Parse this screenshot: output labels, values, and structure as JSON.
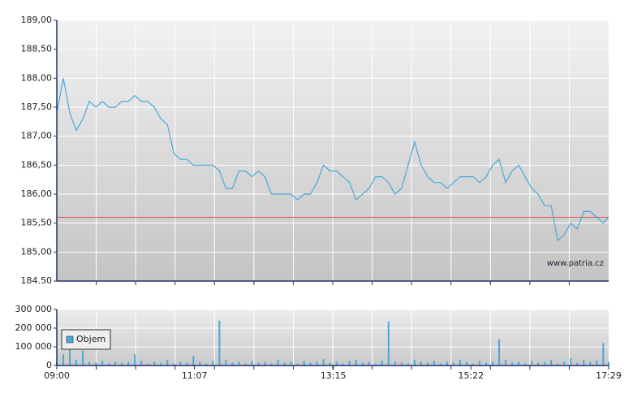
{
  "chart_data": [
    {
      "type": "line",
      "color": "#4aa8d8",
      "x": [
        "09:00",
        "09:06",
        "09:12",
        "09:18",
        "09:24",
        "09:30",
        "09:36",
        "09:42",
        "09:48",
        "09:54",
        "10:00",
        "10:06",
        "10:12",
        "10:18",
        "10:24",
        "10:30",
        "10:36",
        "10:42",
        "10:48",
        "10:54",
        "11:00",
        "11:06",
        "11:12",
        "11:18",
        "11:24",
        "11:30",
        "11:36",
        "11:42",
        "11:48",
        "11:54",
        "12:00",
        "12:06",
        "12:12",
        "12:18",
        "12:24",
        "12:30",
        "12:36",
        "12:42",
        "12:48",
        "12:54",
        "13:00",
        "13:06",
        "13:12",
        "13:18",
        "13:24",
        "13:30",
        "13:36",
        "13:42",
        "13:48",
        "13:54",
        "14:00",
        "14:06",
        "14:12",
        "14:18",
        "14:24",
        "14:30",
        "14:36",
        "14:42",
        "14:48",
        "14:54",
        "15:00",
        "15:06",
        "15:12",
        "15:18",
        "15:24",
        "15:30",
        "15:36",
        "15:42",
        "15:48",
        "15:54",
        "16:00",
        "16:06",
        "16:12",
        "16:18",
        "16:24",
        "16:30",
        "16:36",
        "16:42",
        "16:48",
        "16:54",
        "17:00",
        "17:06",
        "17:12",
        "17:18",
        "17:24",
        "17:29"
      ],
      "values": [
        187.4,
        188.0,
        187.4,
        187.1,
        187.3,
        187.6,
        187.5,
        187.6,
        187.5,
        187.5,
        187.6,
        187.6,
        187.7,
        187.6,
        187.6,
        187.5,
        187.3,
        187.2,
        186.7,
        186.6,
        186.6,
        186.5,
        186.5,
        186.5,
        186.5,
        186.4,
        186.1,
        186.1,
        186.4,
        186.4,
        186.3,
        186.4,
        186.3,
        186.0,
        186.0,
        186.0,
        186.0,
        185.9,
        186.0,
        186.0,
        186.2,
        186.5,
        186.4,
        186.4,
        186.3,
        186.2,
        185.9,
        186.0,
        186.1,
        186.3,
        186.3,
        186.2,
        186.0,
        186.1,
        186.5,
        186.9,
        186.5,
        186.3,
        186.2,
        186.2,
        186.1,
        186.2,
        186.3,
        186.3,
        186.3,
        186.2,
        186.3,
        186.5,
        186.6,
        186.2,
        186.4,
        186.5,
        186.3,
        186.1,
        186.0,
        185.8,
        185.8,
        185.2,
        185.3,
        185.5,
        185.4,
        185.7,
        185.7,
        185.6,
        185.5,
        185.6
      ],
      "xlim": [
        "09:00",
        "17:29"
      ],
      "ylim": [
        184.5,
        189
      ],
      "yticks": [
        {
          "value": 184.5,
          "label": "184.50"
        },
        {
          "value": 185,
          "label": "185,00"
        },
        {
          "value": 185.5,
          "label": "185,50"
        },
        {
          "value": 186,
          "label": "186,00"
        },
        {
          "value": 186.5,
          "label": "186,50"
        },
        {
          "value": 187,
          "label": "187,00"
        },
        {
          "value": 187.5,
          "label": "187,50"
        },
        {
          "value": 188,
          "label": "188,00"
        },
        {
          "value": 188.5,
          "label": "188,50"
        },
        {
          "value": 189,
          "label": "189,00"
        }
      ],
      "grid": true,
      "reference_line": 185.6,
      "reference_color": "#e05050",
      "annotation": "www.patria.cz"
    },
    {
      "type": "bar",
      "x": [
        "09:00",
        "09:06",
        "09:12",
        "09:18",
        "09:24",
        "09:30",
        "09:36",
        "09:42",
        "09:48",
        "09:54",
        "10:00",
        "10:06",
        "10:12",
        "10:18",
        "10:24",
        "10:30",
        "10:36",
        "10:42",
        "10:48",
        "10:54",
        "11:00",
        "11:06",
        "11:12",
        "11:18",
        "11:24",
        "11:30",
        "11:36",
        "11:42",
        "11:48",
        "11:54",
        "12:00",
        "12:06",
        "12:12",
        "12:18",
        "12:24",
        "12:30",
        "12:36",
        "12:42",
        "12:48",
        "12:54",
        "13:00",
        "13:06",
        "13:12",
        "13:18",
        "13:24",
        "13:30",
        "13:36",
        "13:42",
        "13:48",
        "13:54",
        "14:00",
        "14:06",
        "14:12",
        "14:18",
        "14:24",
        "14:30",
        "14:36",
        "14:42",
        "14:48",
        "14:54",
        "15:00",
        "15:06",
        "15:12",
        "15:18",
        "15:24",
        "15:30",
        "15:36",
        "15:42",
        "15:48",
        "15:54",
        "16:00",
        "16:06",
        "16:12",
        "16:18",
        "16:24",
        "16:30",
        "16:36",
        "16:42",
        "16:48",
        "16:54",
        "17:00",
        "17:06",
        "17:12",
        "17:18",
        "17:24",
        "17:29"
      ],
      "series": [
        {
          "name": "Objem",
          "color": "#4aa8d8",
          "values": [
            20000,
            60000,
            130000,
            30000,
            80000,
            20000,
            15000,
            25000,
            10000,
            20000,
            15000,
            20000,
            60000,
            25000,
            10000,
            20000,
            15000,
            30000,
            10000,
            20000,
            15000,
            50000,
            20000,
            10000,
            25000,
            240000,
            30000,
            15000,
            20000,
            10000,
            25000,
            15000,
            20000,
            10000,
            30000,
            15000,
            20000,
            10000,
            25000,
            15000,
            20000,
            35000,
            15000,
            20000,
            10000,
            25000,
            30000,
            15000,
            20000,
            10000,
            25000,
            235000,
            20000,
            15000,
            10000,
            30000,
            20000,
            15000,
            25000,
            10000,
            20000,
            15000,
            30000,
            20000,
            10000,
            25000,
            15000,
            20000,
            140000,
            30000,
            15000,
            20000,
            10000,
            25000,
            15000,
            20000,
            30000,
            10000,
            20000,
            40000,
            15000,
            30000,
            20000,
            25000,
            120000,
            20000
          ]
        }
      ],
      "xlim": [
        "09:00",
        "17:29"
      ],
      "xticks": [
        "09:00",
        "11:07",
        "13:15",
        "15:22",
        "17:29"
      ],
      "ylim": [
        0,
        300000
      ],
      "yticks": [
        0,
        {
          "value": 100000,
          "label": "100 000"
        },
        {
          "value": 200000,
          "label": "200 000"
        },
        {
          "value": 300000,
          "label": "300 000"
        }
      ],
      "grid": true
    }
  ]
}
